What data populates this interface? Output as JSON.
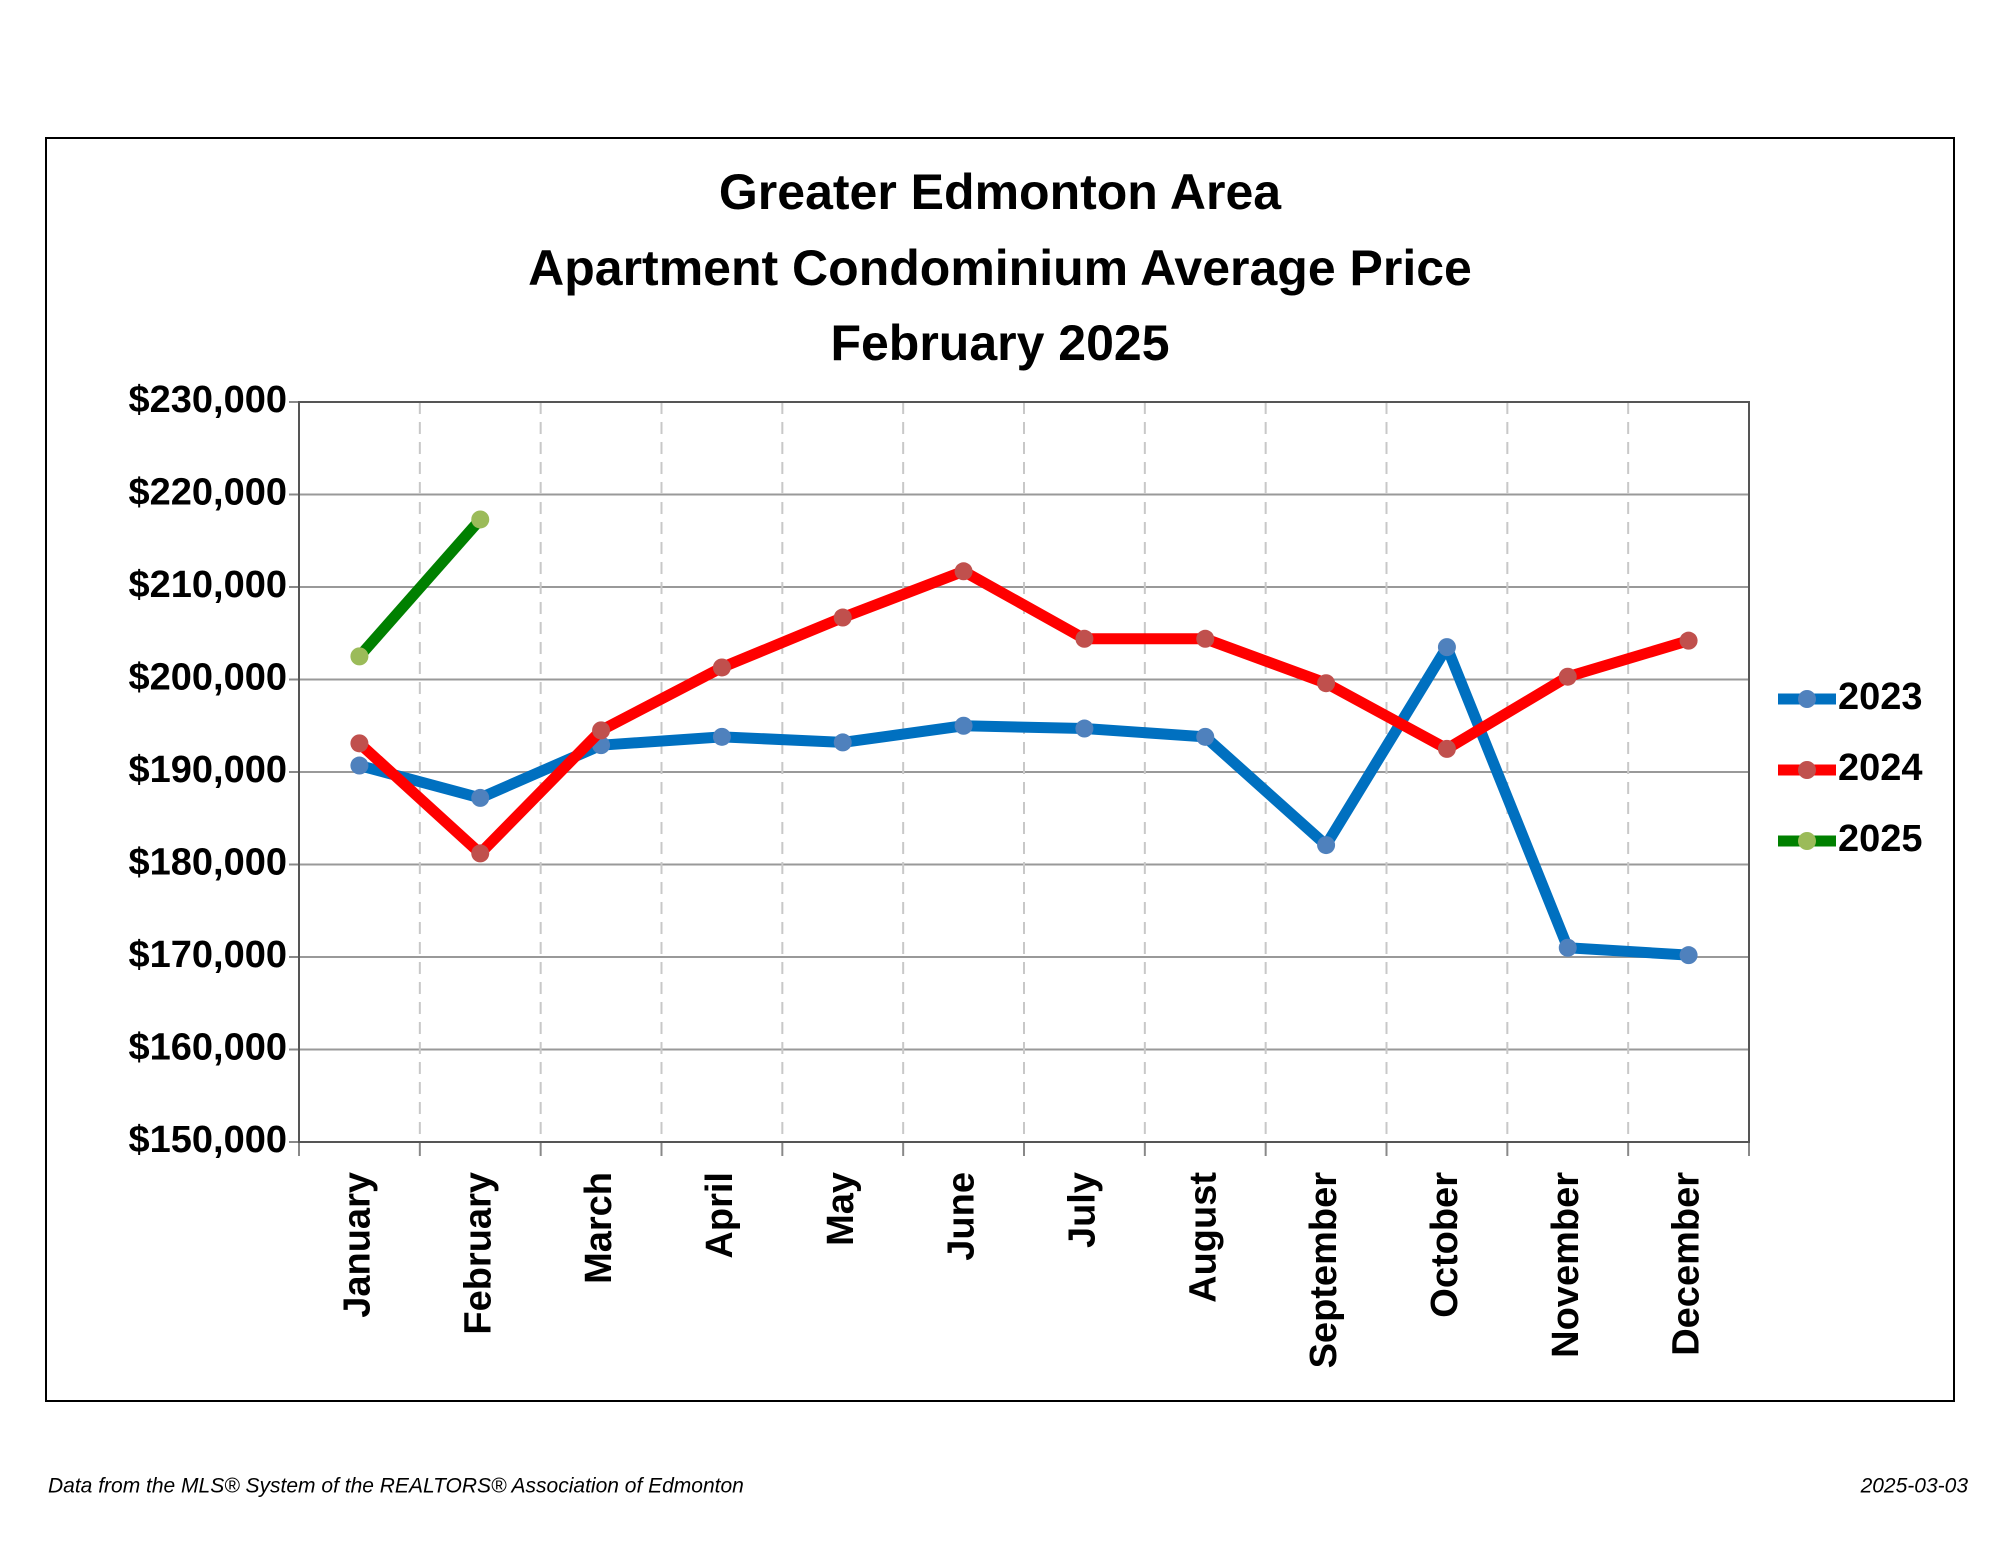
{
  "chart_data": {
    "type": "line",
    "title": [
      "Greater Edmonton Area",
      "Apartment Condominium Average Price",
      "February 2025"
    ],
    "categories": [
      "January",
      "February",
      "March",
      "April",
      "May",
      "June",
      "July",
      "August",
      "September",
      "October",
      "November",
      "December"
    ],
    "series": [
      {
        "name": "2023",
        "color": "#0070c0",
        "marker_color": "#4f81bd",
        "values": [
          190700,
          187200,
          192900,
          193800,
          193200,
          195000,
          194700,
          193800,
          182100,
          203500,
          171000,
          170200
        ]
      },
      {
        "name": "2024",
        "color": "#ff0000",
        "marker_color": "#c0504d",
        "values": [
          193100,
          181200,
          194500,
          201300,
          206700,
          211700,
          204400,
          204400,
          199600,
          192500,
          200300,
          204200
        ]
      },
      {
        "name": "2025",
        "color": "#008000",
        "marker_color": "#9bbb59",
        "values": [
          202500,
          217300,
          null,
          null,
          null,
          null,
          null,
          null,
          null,
          null,
          null,
          null
        ]
      }
    ],
    "ylim": [
      150000,
      230000
    ],
    "yticks": [
      {
        "value": 150000,
        "label": "$150,000"
      },
      {
        "value": 160000,
        "label": "$160,000"
      },
      {
        "value": 170000,
        "label": "$170,000"
      },
      {
        "value": 180000,
        "label": "$180,000"
      },
      {
        "value": 190000,
        "label": "$190,000"
      },
      {
        "value": 200000,
        "label": "$200,000"
      },
      {
        "value": 210000,
        "label": "$210,000"
      },
      {
        "value": 220000,
        "label": "$220,000"
      },
      {
        "value": 230000,
        "label": "$230,000"
      }
    ],
    "grid": true,
    "legend": "right"
  },
  "footer": {
    "source": "Data from the MLS® System of the REALTORS® Association of Edmonton",
    "date": "2025-03-03"
  }
}
